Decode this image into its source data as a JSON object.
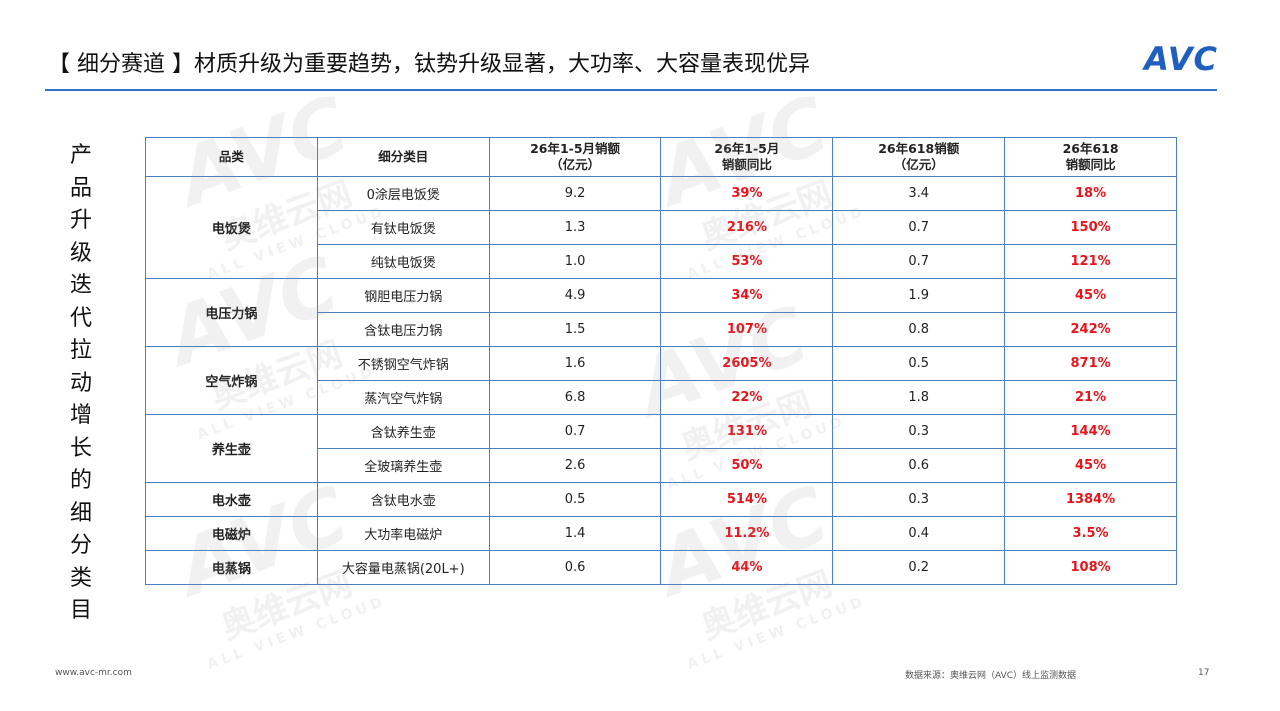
{
  "header": {
    "title": "【 细分赛道 】材质升级为重要趋势，钛势升级显著，大功率、大容量表现优异",
    "logo": "AVC"
  },
  "side_label": "产品升级迭代拉动增长的细分类目",
  "watermark": {
    "logo": "AVC",
    "name": "奥维云网",
    "sub": "ALL VIEW CLOUD"
  },
  "table": {
    "header": [
      "品类",
      "细分类目",
      "26年1-5月销额\n（亿元）",
      "26年1-5月\n销额同比",
      "26年618销额\n（亿元）",
      "26年618\n销额同比"
    ],
    "groups": [
      {
        "category": "电饭煲",
        "rows": [
          [
            "0涂层电饭煲",
            "9.2",
            "39%",
            "3.4",
            "18%"
          ],
          [
            "有钛电饭煲",
            "1.3",
            "216%",
            "0.7",
            "150%"
          ],
          [
            "纯钛电饭煲",
            "1.0",
            "53%",
            "0.7",
            "121%"
          ]
        ]
      },
      {
        "category": "电压力锅",
        "rows": [
          [
            "钢胆电压力锅",
            "4.9",
            "34%",
            "1.9",
            "45%"
          ],
          [
            "含钛电压力锅",
            "1.5",
            "107%",
            "0.8",
            "242%"
          ]
        ]
      },
      {
        "category": "空气炸锅",
        "rows": [
          [
            "不锈钢空气炸锅",
            "1.6",
            "2605%",
            "0.5",
            "871%"
          ],
          [
            "蒸汽空气炸锅",
            "6.8",
            "22%",
            "1.8",
            "21%"
          ]
        ]
      },
      {
        "category": "养生壶",
        "rows": [
          [
            "含钛养生壶",
            "0.7",
            "131%",
            "0.3",
            "144%"
          ],
          [
            "全玻璃养生壶",
            "2.6",
            "50%",
            "0.6",
            "45%"
          ]
        ]
      },
      {
        "category": "电水壶",
        "rows": [
          [
            "含钛电水壶",
            "0.5",
            "514%",
            "0.3",
            "1384%"
          ]
        ]
      },
      {
        "category": "电磁炉",
        "rows": [
          [
            "大功率电磁炉",
            "1.4",
            "11.2%",
            "0.4",
            "3.5%"
          ]
        ]
      },
      {
        "category": "电蒸锅",
        "rows": [
          [
            "大容量电蒸锅(20L+)",
            "0.6",
            "44%",
            "0.2",
            "108%"
          ]
        ]
      }
    ]
  },
  "footer": {
    "website": "www.avc-mr.com",
    "source": "数据来源：奥维云网（AVC）线上监测数据",
    "page": "17"
  }
}
